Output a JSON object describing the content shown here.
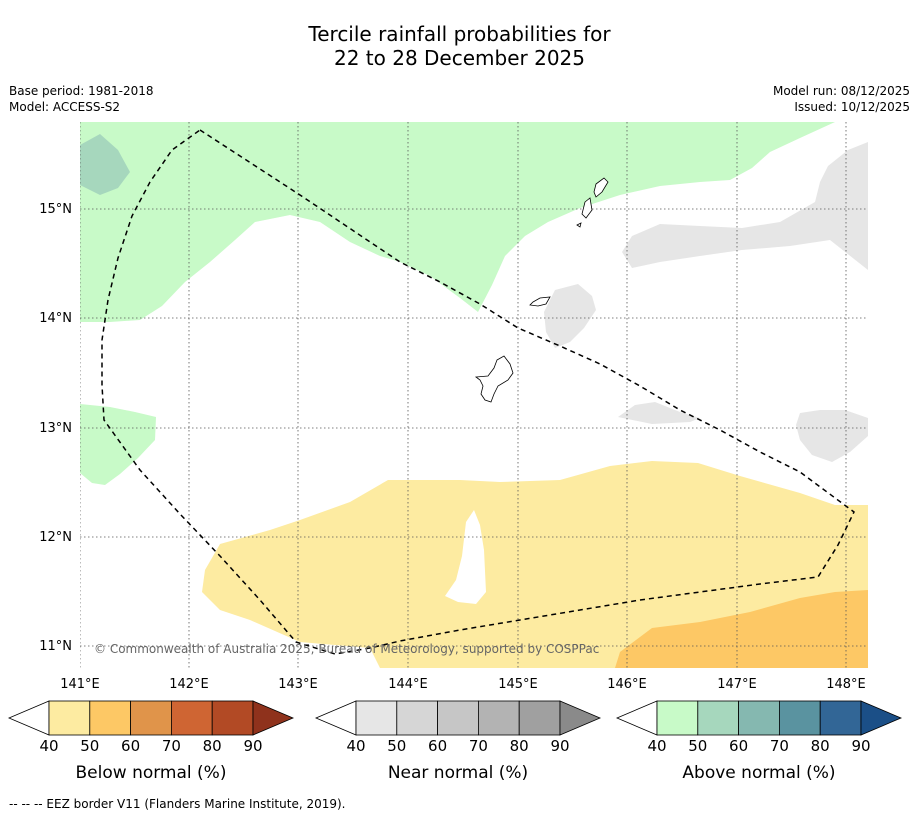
{
  "title": {
    "line1": "Tercile rainfall probabilities for",
    "line2": "22 to 28 December 2025"
  },
  "meta": {
    "base_period": "Base period: 1981-2018",
    "model": "Model: ACCESS-S2",
    "model_run": "Model run: 08/12/2025",
    "issued": "Issued: 10/12/2025"
  },
  "map": {
    "lon_labels": [
      "141°E",
      "142°E",
      "143°E",
      "144°E",
      "145°E",
      "146°E",
      "147°E",
      "148°E"
    ],
    "lat_labels": [
      "15°N",
      "14°N",
      "13°N",
      "12°N",
      "11°N"
    ],
    "copyright": "© Commonwealth of Australia 2025, Bureau of Meteorology, supported by COSPPac"
  },
  "legends": [
    {
      "label": "Below normal (%)",
      "ticks": [
        "40",
        "50",
        "60",
        "70",
        "80",
        "90"
      ],
      "colors": [
        "#fdeba1",
        "#fdc865",
        "#e0944a",
        "#cf6533",
        "#b24a25",
        "#8f321c"
      ]
    },
    {
      "label": "Near normal (%)",
      "ticks": [
        "40",
        "50",
        "60",
        "70",
        "80",
        "90"
      ],
      "colors": [
        "#e6e6e6",
        "#d6d6d6",
        "#c6c6c6",
        "#b3b3b3",
        "#a0a0a0",
        "#8a8a8a"
      ]
    },
    {
      "label": "Above normal (%)",
      "ticks": [
        "40",
        "50",
        "60",
        "70",
        "80",
        "90"
      ],
      "colors": [
        "#c8fac8",
        "#a6d7bd",
        "#85b8b0",
        "#5a93a0",
        "#326696",
        "#1b4f87"
      ]
    }
  ],
  "footer": "--  --  -- EEZ border V11 (Flanders Marine Institute, 2019)."
}
